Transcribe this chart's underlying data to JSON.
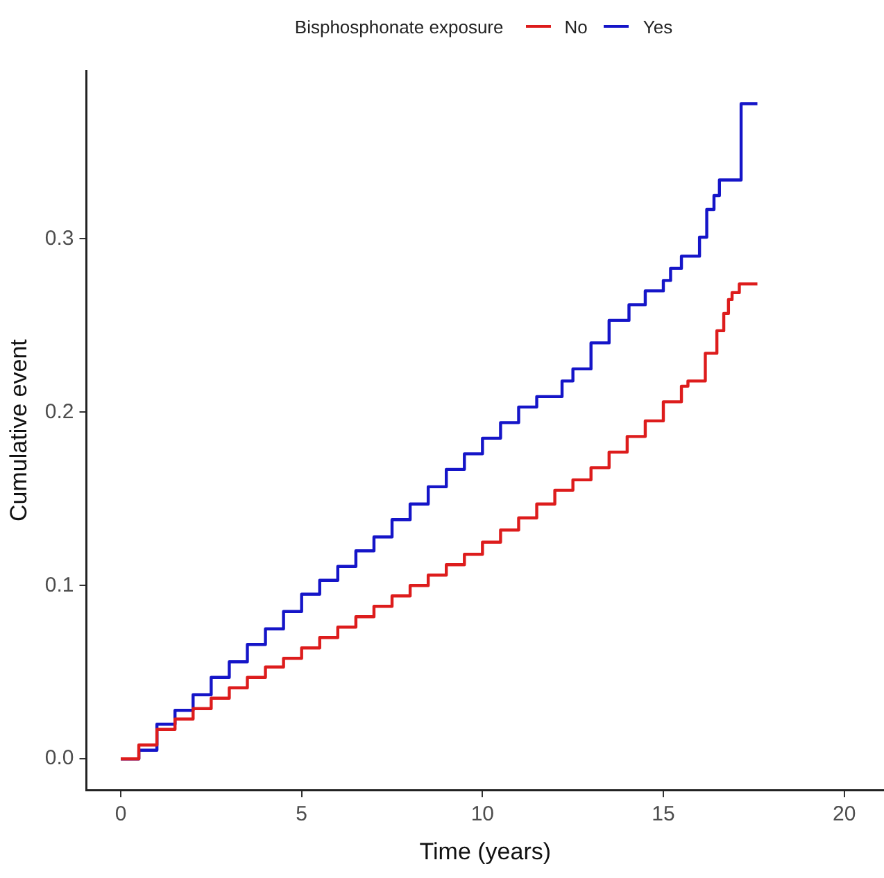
{
  "chart_data": {
    "type": "step",
    "xlabel": "Time (years)",
    "ylabel": "Cumulative event",
    "legend_title": "Bisphosphonate exposure",
    "legend": "top",
    "xlim": [
      -0.95,
      21.1
    ],
    "xticks": [
      0,
      5,
      10,
      15,
      20
    ],
    "ylim": [
      -0.018,
      0.397
    ],
    "yticks": [
      {
        "value": 0,
        "label": "0.0"
      },
      {
        "value": 0.1,
        "label": "0.1"
      },
      {
        "value": 0.2,
        "label": "0.2"
      },
      {
        "value": 0.3,
        "label": "0.3"
      }
    ],
    "grid": false,
    "marker": "none",
    "line_style": "solid",
    "series": [
      {
        "name": "No",
        "color": "#dd1c1c",
        "x": [
          0,
          0.5,
          1,
          1.5,
          2,
          2.5,
          3,
          3.5,
          4,
          4.5,
          5,
          5.5,
          6,
          6.5,
          7,
          7.5,
          8,
          8.5,
          9,
          9.5,
          10,
          10.5,
          11,
          11.5,
          12,
          12.5,
          13,
          13.5,
          14,
          14.5,
          15,
          15.5,
          15.68,
          16.16,
          16.48,
          16.67,
          16.8,
          16.9,
          17.1,
          17.6
        ],
        "values": [
          0,
          0.008,
          0.017,
          0.023,
          0.029,
          0.035,
          0.041,
          0.047,
          0.053,
          0.058,
          0.064,
          0.07,
          0.076,
          0.082,
          0.088,
          0.094,
          0.1,
          0.106,
          0.112,
          0.118,
          0.125,
          0.132,
          0.139,
          0.147,
          0.155,
          0.161,
          0.168,
          0.177,
          0.186,
          0.195,
          0.206,
          0.215,
          0.218,
          0.234,
          0.247,
          0.257,
          0.265,
          0.269,
          0.274,
          0.274
        ]
      },
      {
        "name": "Yes",
        "color": "#1515c8",
        "x": [
          0,
          0.3,
          0.5,
          1,
          1.5,
          2,
          2.5,
          3,
          3.5,
          4,
          4.5,
          5,
          5.5,
          6,
          6.5,
          7,
          7.5,
          8,
          8.5,
          9,
          9.5,
          10,
          10.5,
          11,
          11.5,
          12.2,
          12.5,
          13,
          13.5,
          14.05,
          14.5,
          15,
          15.2,
          15.5,
          16,
          16.2,
          16.4,
          16.55,
          17.15,
          17.6
        ],
        "values": [
          0,
          0,
          0.005,
          0.02,
          0.028,
          0.037,
          0.047,
          0.056,
          0.066,
          0.075,
          0.085,
          0.095,
          0.103,
          0.111,
          0.12,
          0.128,
          0.138,
          0.147,
          0.157,
          0.167,
          0.176,
          0.185,
          0.194,
          0.203,
          0.209,
          0.218,
          0.225,
          0.24,
          0.253,
          0.262,
          0.27,
          0.276,
          0.283,
          0.29,
          0.301,
          0.317,
          0.325,
          0.334,
          0.378,
          0.378
        ]
      }
    ]
  }
}
